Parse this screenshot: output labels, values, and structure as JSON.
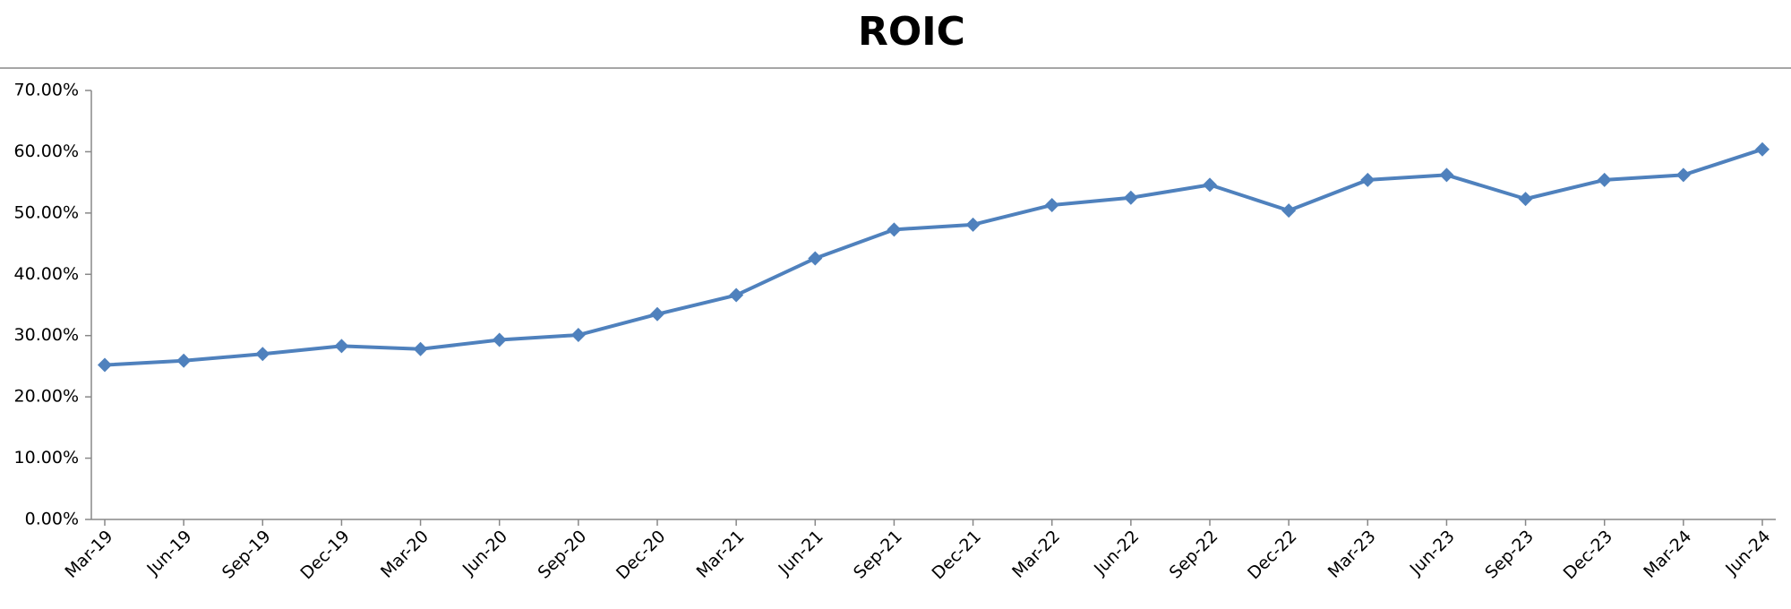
{
  "chart_data": {
    "type": "line",
    "title": "ROIC",
    "categories": [
      "Mar-19",
      "Jun-19",
      "Sep-19",
      "Dec-19",
      "Mar-20",
      "Jun-20",
      "Sep-20",
      "Dec-20",
      "Mar-21",
      "Jun-21",
      "Sep-21",
      "Dec-21",
      "Mar-22",
      "Jun-22",
      "Sep-22",
      "Dec-22",
      "Mar-23",
      "Jun-23",
      "Sep-23",
      "Dec-23",
      "Mar-24",
      "Jun-24"
    ],
    "series": [
      {
        "name": "ROIC",
        "color": "#4f81bd",
        "values": [
          25.2,
          25.9,
          27.0,
          28.3,
          27.8,
          29.3,
          30.1,
          33.5,
          36.6,
          42.6,
          47.3,
          48.1,
          51.3,
          52.5,
          54.6,
          50.4,
          55.4,
          56.2,
          52.3,
          55.4,
          56.2,
          60.4
        ]
      }
    ],
    "ylim": [
      0,
      70
    ],
    "yticks": [
      {
        "value": 0,
        "label": "0.00%"
      },
      {
        "value": 10,
        "label": "10.00%"
      },
      {
        "value": 20,
        "label": "20.00%"
      },
      {
        "value": 30,
        "label": "30.00%"
      },
      {
        "value": 40,
        "label": "40.00%"
      },
      {
        "value": 50,
        "label": "50.00%"
      },
      {
        "value": 60,
        "label": "60.00%"
      },
      {
        "value": 70,
        "label": "70.00%"
      }
    ],
    "grid": false
  }
}
